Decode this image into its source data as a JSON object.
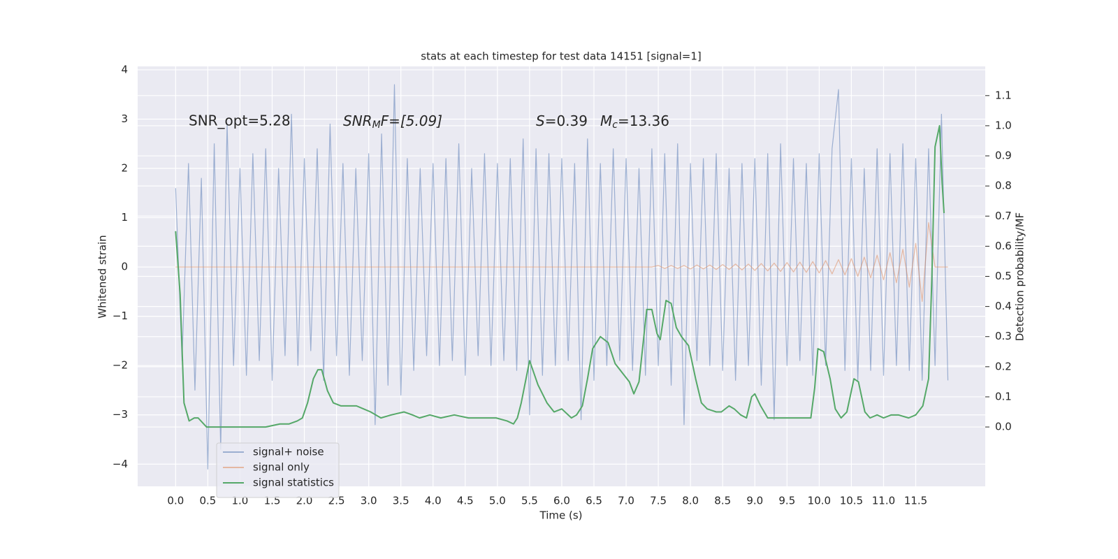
{
  "chart_data": {
    "type": "line",
    "title": "stats at each timestep for test data 14151 [signal=1]",
    "xlabel": "Time (s)",
    "ylabel": "Whitened strain",
    "y2label": "Detection probability/MF",
    "annotations": [
      {
        "text": "SNR_opt=5.28"
      },
      {
        "parts": [
          "SNR",
          "M",
          "F=[5.09]"
        ]
      },
      {
        "parts": [
          "S",
          "=0.39",
          "M",
          "c",
          "=13.36"
        ]
      }
    ],
    "xlim": [
      -0.59,
      12.58
    ],
    "ylim": [
      -4.45,
      4.07
    ],
    "y2lim": [
      -0.197,
      1.197
    ],
    "xticks": [
      {
        "value": 0,
        "label": "0.0"
      },
      0.5,
      {
        "value": 1,
        "label": "1.0"
      },
      1.5,
      {
        "value": 2,
        "label": "2.0"
      },
      2.5,
      {
        "value": 3,
        "label": "3.0"
      },
      3.5,
      {
        "value": 4,
        "label": "4.0"
      },
      4.5,
      {
        "value": 5,
        "label": "5.0"
      },
      5.5,
      {
        "value": 6,
        "label": "6.0"
      },
      6.5,
      {
        "value": 7,
        "label": "7.0"
      },
      7.5,
      {
        "value": 8,
        "label": "8.0"
      },
      8.5,
      {
        "value": 9,
        "label": "9.0"
      },
      9.5,
      {
        "value": 10,
        "label": "10.0"
      },
      10.5,
      {
        "value": 11,
        "label": "11.0"
      },
      11.5
    ],
    "yticks": [
      {
        "value": -4,
        "label": "−4"
      },
      {
        "value": -3,
        "label": "−3"
      },
      {
        "value": -2,
        "label": "−2"
      },
      {
        "value": -1,
        "label": "−1"
      },
      0,
      1,
      2,
      3,
      4
    ],
    "y2ticks": [
      {
        "value": 0,
        "label": "0.0"
      },
      0.1,
      0.2,
      0.3,
      0.4,
      0.5,
      0.6,
      0.7,
      0.8,
      0.9,
      {
        "value": 1,
        "label": "1.0"
      },
      1.1
    ],
    "grid": true,
    "legend": "lower left",
    "x": [
      0.0,
      0.1,
      0.2,
      0.3,
      0.4,
      0.5,
      0.6,
      0.7,
      0.8,
      0.9,
      1.0,
      1.1,
      1.2,
      1.3,
      1.4,
      1.5,
      1.6,
      1.7,
      1.8,
      1.9,
      2.0,
      2.1,
      2.2,
      2.3,
      2.4,
      2.5,
      2.6,
      2.7,
      2.8,
      2.9,
      3.0,
      3.1,
      3.2,
      3.3,
      3.4,
      3.5,
      3.6,
      3.7,
      3.8,
      3.9,
      4.0,
      4.1,
      4.2,
      4.3,
      4.4,
      4.5,
      4.6,
      4.7,
      4.8,
      4.9,
      5.0,
      5.1,
      5.2,
      5.3,
      5.4,
      5.5,
      5.6,
      5.7,
      5.8,
      5.9,
      6.0,
      6.1,
      6.2,
      6.3,
      6.4,
      6.5,
      6.6,
      6.7,
      6.8,
      6.9,
      7.0,
      7.1,
      7.2,
      7.3,
      7.4,
      7.5,
      7.6,
      7.7,
      7.8,
      7.9,
      8.0,
      8.1,
      8.2,
      8.3,
      8.4,
      8.5,
      8.6,
      8.7,
      8.8,
      8.9,
      9.0,
      9.1,
      9.2,
      9.3,
      9.4,
      9.5,
      9.6,
      9.7,
      9.8,
      9.9,
      10.0,
      10.1,
      10.2,
      10.3,
      10.4,
      10.5,
      10.6,
      10.7,
      10.8,
      10.9,
      11.0,
      11.1,
      11.2,
      11.3,
      11.4,
      11.5,
      11.6,
      11.7,
      11.8,
      11.9,
      12.0
    ],
    "series": [
      {
        "name": "signal+ noise",
        "color": "#4c72b0",
        "alpha": 0.5,
        "values": [
          1.6,
          -1.9,
          2.1,
          -2.5,
          1.8,
          -4.1,
          2.5,
          -3.7,
          2.9,
          -2.0,
          2.0,
          -2.2,
          2.3,
          -1.9,
          2.4,
          -2.3,
          2.0,
          -1.8,
          3.1,
          -2.0,
          2.2,
          -1.7,
          2.4,
          -2.3,
          2.9,
          -1.8,
          2.1,
          -2.2,
          2.0,
          -1.9,
          2.3,
          -3.2,
          2.7,
          -2.4,
          3.7,
          -2.6,
          2.2,
          -2.1,
          2.0,
          -1.8,
          2.1,
          -2.0,
          2.2,
          -1.9,
          2.5,
          -2.2,
          2.0,
          -1.8,
          2.3,
          -2.0,
          2.1,
          -1.9,
          2.2,
          -2.1,
          2.6,
          -3.0,
          2.4,
          -2.2,
          2.3,
          -2.0,
          2.2,
          -1.9,
          2.1,
          -3.1,
          2.6,
          -2.3,
          2.1,
          -2.0,
          2.4,
          -1.9,
          2.2,
          -2.1,
          2.0,
          -2.2,
          2.4,
          -2.0,
          2.3,
          -2.4,
          2.5,
          -3.2,
          2.1,
          -1.9,
          2.2,
          -2.0,
          2.3,
          -2.1,
          2.0,
          -2.3,
          2.1,
          -2.0,
          2.2,
          -2.4,
          2.3,
          -3.1,
          2.5,
          -2.0,
          2.2,
          -1.9,
          2.1,
          -2.2,
          2.3,
          -2.0,
          2.4,
          3.6,
          -2.1,
          2.2,
          -2.3,
          2.0,
          -2.1,
          2.4,
          -2.2,
          2.3,
          -2.0,
          2.5,
          -2.1,
          2.2,
          -2.3,
          2.4,
          -2.0,
          3.1,
          -2.3
        ]
      },
      {
        "name": "signal only",
        "color": "#dd8452",
        "alpha": 0.5,
        "values": [
          0,
          0,
          0,
          0,
          0,
          0,
          0,
          0,
          0,
          0,
          0,
          0,
          0,
          0,
          0,
          0,
          0,
          0,
          0,
          0,
          0,
          0,
          0,
          0,
          0,
          0,
          0,
          0,
          0,
          0,
          0,
          0,
          0,
          0,
          0,
          0,
          0,
          0,
          0,
          0,
          0,
          0,
          0,
          0,
          0,
          0,
          0,
          0,
          0,
          0,
          0,
          0,
          0,
          0,
          0,
          0,
          0,
          0,
          0,
          0,
          0,
          0,
          0,
          0,
          0,
          0,
          0,
          0,
          0,
          0,
          0,
          0,
          0,
          0,
          0,
          0.03,
          -0.03,
          0.03,
          -0.03,
          0.03,
          -0.04,
          0.04,
          -0.04,
          0.04,
          -0.05,
          0.05,
          -0.05,
          0.06,
          -0.06,
          0.06,
          -0.07,
          0.07,
          -0.08,
          0.08,
          -0.09,
          0.09,
          -0.1,
          0.1,
          -0.11,
          0.11,
          -0.12,
          0.13,
          -0.14,
          0.15,
          -0.16,
          0.17,
          -0.19,
          0.2,
          -0.22,
          0.24,
          -0.26,
          0.29,
          -0.32,
          0.36,
          -0.41,
          0.48,
          -0.7,
          0.9,
          0,
          0,
          0
        ]
      },
      {
        "name": "signal statistics",
        "color": "#55a868",
        "axis": "y2",
        "x": [
          0,
          0.07,
          0.13,
          0.21,
          0.29,
          0.35,
          0.48,
          0.75,
          1.08,
          1.4,
          1.62,
          1.76,
          1.89,
          1.97,
          2.05,
          2.14,
          2.21,
          2.27,
          2.36,
          2.45,
          2.57,
          2.7,
          2.81,
          2.92,
          3.03,
          3.19,
          3.35,
          3.55,
          3.68,
          3.79,
          3.95,
          4.12,
          4.33,
          4.55,
          4.77,
          4.98,
          5.15,
          5.25,
          5.31,
          5.37,
          5.5,
          5.63,
          5.77,
          5.88,
          6.0,
          6.15,
          6.23,
          6.32,
          6.4,
          6.48,
          6.6,
          6.72,
          6.83,
          6.94,
          7.05,
          7.12,
          7.2,
          7.32,
          7.4,
          7.48,
          7.53,
          7.62,
          7.7,
          7.78,
          7.86,
          7.97,
          8.08,
          8.17,
          8.26,
          8.4,
          8.48,
          8.6,
          8.68,
          8.78,
          8.87,
          8.95,
          9.0,
          9.09,
          9.2,
          9.33,
          9.54,
          9.76,
          9.87,
          9.93,
          9.98,
          10.07,
          10.17,
          10.25,
          10.34,
          10.43,
          10.54,
          10.61,
          10.71,
          10.79,
          10.9,
          11.0,
          11.12,
          11.23,
          11.39,
          11.5,
          11.61,
          11.7,
          11.75,
          11.8,
          11.87,
          11.91,
          11.94
        ],
        "values": [
          0.65,
          0.44,
          0.08,
          0.02,
          0.03,
          0.03,
          0.0,
          0.0,
          0.0,
          0.0,
          0.01,
          0.01,
          0.02,
          0.03,
          0.08,
          0.16,
          0.19,
          0.19,
          0.12,
          0.08,
          0.07,
          0.07,
          0.07,
          0.06,
          0.05,
          0.03,
          0.04,
          0.05,
          0.04,
          0.03,
          0.04,
          0.03,
          0.04,
          0.03,
          0.03,
          0.03,
          0.02,
          0.01,
          0.03,
          0.08,
          0.22,
          0.14,
          0.08,
          0.05,
          0.06,
          0.03,
          0.04,
          0.07,
          0.16,
          0.26,
          0.3,
          0.28,
          0.21,
          0.18,
          0.15,
          0.11,
          0.15,
          0.39,
          0.39,
          0.31,
          0.29,
          0.42,
          0.41,
          0.33,
          0.3,
          0.27,
          0.16,
          0.08,
          0.06,
          0.05,
          0.05,
          0.07,
          0.06,
          0.04,
          0.03,
          0.1,
          0.11,
          0.07,
          0.03,
          0.03,
          0.03,
          0.03,
          0.03,
          0.13,
          0.26,
          0.25,
          0.16,
          0.06,
          0.03,
          0.05,
          0.16,
          0.15,
          0.05,
          0.03,
          0.04,
          0.03,
          0.04,
          0.04,
          0.03,
          0.04,
          0.07,
          0.16,
          0.49,
          0.93,
          1.0,
          0.81,
          0.71
        ]
      }
    ]
  }
}
